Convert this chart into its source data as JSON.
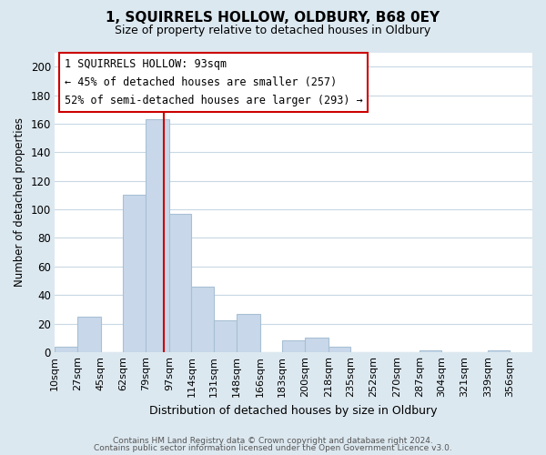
{
  "title": "1, SQUIRRELS HOLLOW, OLDBURY, B68 0EY",
  "subtitle": "Size of property relative to detached houses in Oldbury",
  "xlabel": "Distribution of detached houses by size in Oldbury",
  "ylabel": "Number of detached properties",
  "bar_color": "#c8d8ea",
  "bar_edge_color": "#a8c0d4",
  "background_color": "#dce8f0",
  "plot_bg_color": "#ffffff",
  "grid_color": "#c8d8e4",
  "bin_labels": [
    "10sqm",
    "27sqm",
    "45sqm",
    "62sqm",
    "79sqm",
    "97sqm",
    "114sqm",
    "131sqm",
    "148sqm",
    "166sqm",
    "183sqm",
    "200sqm",
    "218sqm",
    "235sqm",
    "252sqm",
    "270sqm",
    "287sqm",
    "304sqm",
    "321sqm",
    "339sqm",
    "356sqm"
  ],
  "bar_heights": [
    4,
    25,
    0,
    110,
    163,
    97,
    46,
    22,
    27,
    0,
    8,
    10,
    4,
    0,
    0,
    0,
    1,
    0,
    0,
    1
  ],
  "bin_edges": [
    10,
    27,
    45,
    62,
    79,
    97,
    114,
    131,
    148,
    166,
    183,
    200,
    218,
    235,
    252,
    270,
    287,
    304,
    321,
    339,
    356
  ],
  "ylim": [
    0,
    210
  ],
  "yticks": [
    0,
    20,
    40,
    60,
    80,
    100,
    120,
    140,
    160,
    180,
    200
  ],
  "vline_x": 93,
  "vline_color": "#cc0000",
  "annotation_title": "1 SQUIRRELS HOLLOW: 93sqm",
  "annotation_line1": "← 45% of detached houses are smaller (257)",
  "annotation_line2": "52% of semi-detached houses are larger (293) →",
  "annotation_box_color": "#ffffff",
  "annotation_box_edge": "#cc0000",
  "footer1": "Contains HM Land Registry data © Crown copyright and database right 2024.",
  "footer2": "Contains public sector information licensed under the Open Government Licence v3.0."
}
